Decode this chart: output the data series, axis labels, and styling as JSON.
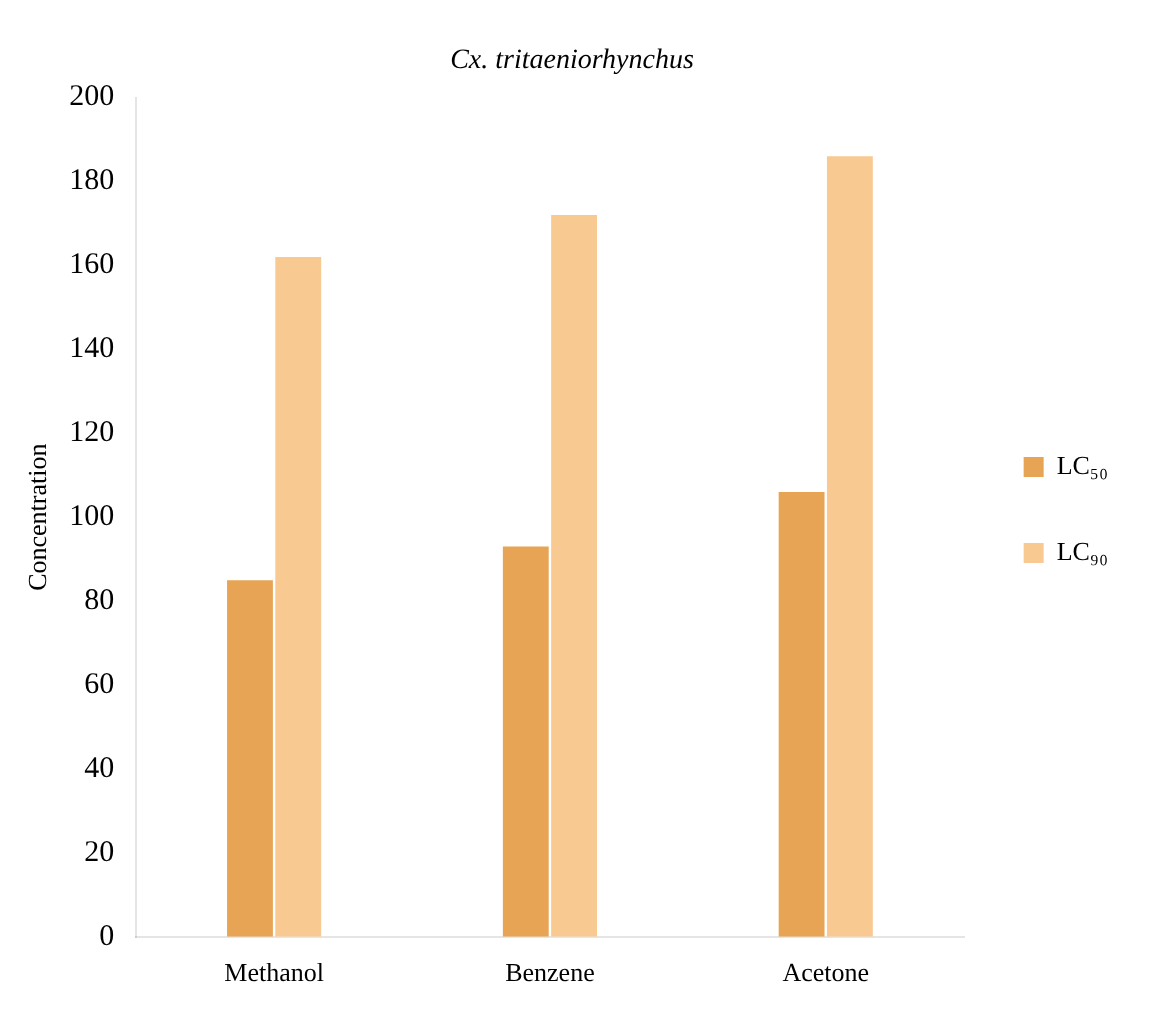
{
  "chart_data": {
    "type": "bar",
    "title": "Cx. tritaeniorhynchus",
    "ylabel": "Concentration",
    "categories": [
      "Methanol",
      "Benzene",
      "Acetone"
    ],
    "series": [
      {
        "name": "LC₅₀",
        "color": "#e8a455",
        "values": [
          85,
          93,
          106
        ]
      },
      {
        "name": "LC₉₀",
        "color": "#f8c990",
        "values": [
          162,
          172,
          186
        ]
      }
    ],
    "ylim": [
      0,
      200
    ],
    "yticks": [
      0,
      20,
      40,
      60,
      80,
      100,
      120,
      140,
      160,
      180,
      200
    ],
    "grid": false,
    "legend": "right"
  }
}
